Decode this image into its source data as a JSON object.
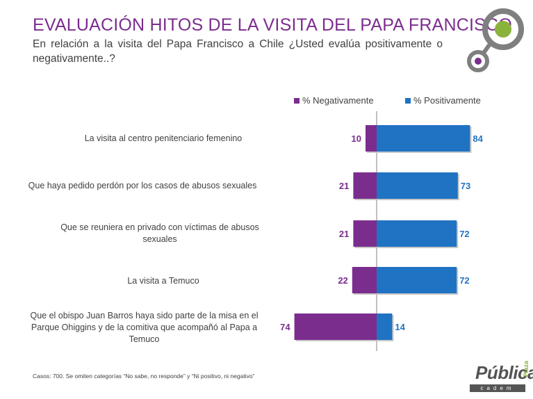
{
  "title": "EVALUACIÓN HITOS DE LA VISITA DEL PAPA FRANCISCO",
  "subtitle": "En relación a la visita del Papa Francisco a Chile ¿Usted evalúa positivamente o negativamente..?",
  "footnote": "Casos: 700. Se omiten categorías “No sabe, no responde” y “Ni positivo, ni negativo”",
  "brand": {
    "top": "Plaza",
    "main": "Pública",
    "sub": "cadem"
  },
  "colors": {
    "negative": "#7b2d8e",
    "positive": "#1f73c2",
    "title": "#7b2d8e",
    "logo_green": "#8ab33c",
    "logo_gray": "#7f7f7f"
  },
  "chart_data": {
    "type": "bar",
    "orientation": "horizontal-diverging",
    "categories": [
      "La visita al centro penitenciario femenino",
      "Que haya pedido perdón por los casos de abusos sexuales",
      "Que se reuniera en privado con víctimas de abusos sexuales",
      "La visita a Temuco",
      "Que el obispo Juan Barros haya sido parte de la misa en el Parque Ohiggins y de la comitiva que acompañó al Papa a Temuco"
    ],
    "series": [
      {
        "name": "% Negativamente",
        "values": [
          10,
          21,
          21,
          22,
          74
        ]
      },
      {
        "name": "% Positivamente",
        "values": [
          84,
          73,
          72,
          72,
          14
        ]
      }
    ],
    "legend_position": "top-right",
    "grid": false
  }
}
